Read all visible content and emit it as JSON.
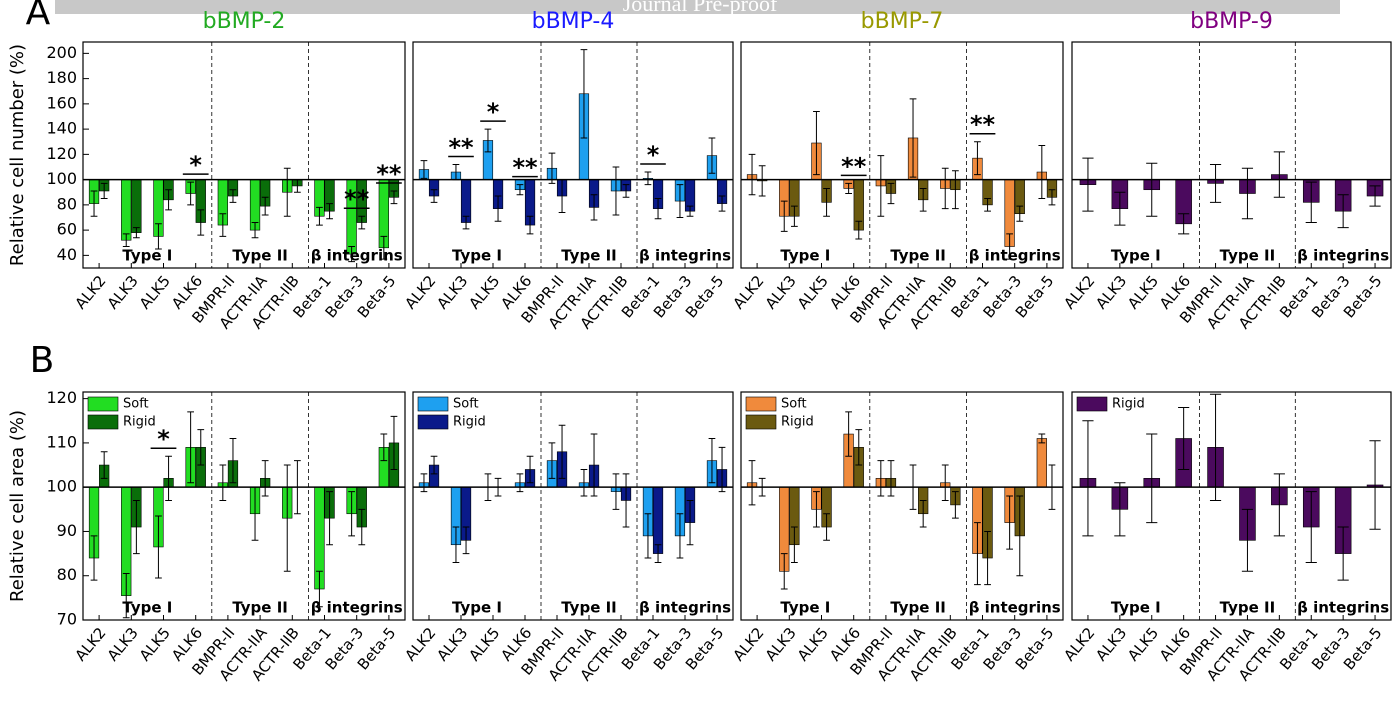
{
  "watermark": "Journal Pre-proof",
  "panel_labels": [
    "A",
    "B"
  ],
  "chart_data": [
    {
      "type": "bar",
      "title": "bBMP-2",
      "title_color": "#22aa22",
      "ylabel": "Relative cell number (%)",
      "categories": [
        "ALK2",
        "ALK3",
        "ALK5",
        "ALK6",
        "BMPR-II",
        "ACTR-IIA",
        "ACTR-IIB",
        "Beta-1",
        "Beta-3",
        "Beta-5"
      ],
      "ylim": [
        30,
        209
      ],
      "yticks": [
        40,
        60,
        80,
        100,
        120,
        140,
        160,
        180,
        200
      ],
      "baseline": 100,
      "series": [
        {
          "color": "#22dd22",
          "values": [
            81,
            52,
            55,
            89,
            64,
            60,
            90,
            71,
            41,
            46
          ],
          "errors": [
            10,
            5,
            10,
            9,
            9,
            6,
            19,
            7,
            6,
            9
          ]
        },
        {
          "color": "#0a6e0a",
          "values": [
            91,
            58,
            84,
            66,
            87,
            79,
            95,
            75,
            66,
            86
          ],
          "errors": [
            6,
            4,
            8,
            10,
            5,
            7,
            5,
            6,
            5,
            5
          ]
        }
      ],
      "groups": [
        {
          "label": "Type I",
          "from": "ALK2",
          "to": "ALK6"
        },
        {
          "label": "Type II",
          "from": "BMPR-II",
          "to": "ACTR-IIB"
        },
        {
          "label": "β integrins",
          "from": "Beta-1",
          "to": "Beta-5"
        }
      ],
      "annotations": [
        {
          "text": "*",
          "category": "ALK6"
        },
        {
          "text": "**",
          "category": "Beta-3"
        },
        {
          "text": "**",
          "category": "Beta-5"
        }
      ]
    },
    {
      "type": "bar",
      "title": "bBMP-4",
      "title_color": "#1a1aff",
      "categories": [
        "ALK2",
        "ALK3",
        "ALK5",
        "ALK6",
        "BMPR-II",
        "ACTR-IIA",
        "ACTR-IIB",
        "Beta-1",
        "Beta-3",
        "Beta-5"
      ],
      "ylim": [
        30,
        209
      ],
      "baseline": 100,
      "series": [
        {
          "color": "#1ea0f0",
          "values": [
            108,
            106,
            131,
            92,
            109,
            168,
            91,
            101,
            83,
            119
          ],
          "errors": [
            7,
            6,
            9,
            4,
            12,
            35,
            19,
            5,
            13,
            14
          ]
        },
        {
          "color": "#0a1a8a",
          "values": [
            87,
            66,
            77,
            64,
            87,
            78,
            91,
            77,
            75,
            81
          ],
          "errors": [
            5,
            5,
            10,
            7,
            13,
            10,
            5,
            8,
            4,
            6
          ]
        }
      ],
      "groups": [
        {
          "label": "Type I",
          "from": "ALK2",
          "to": "ALK6"
        },
        {
          "label": "Type II",
          "from": "BMPR-II",
          "to": "ACTR-IIB"
        },
        {
          "label": "β integrins",
          "from": "Beta-1",
          "to": "Beta-5"
        }
      ],
      "annotations": [
        {
          "text": "**",
          "category": "ALK3"
        },
        {
          "text": "*",
          "category": "ALK5"
        },
        {
          "text": "**",
          "category": "ALK6"
        },
        {
          "text": "*",
          "category": "Beta-1"
        }
      ]
    },
    {
      "type": "bar",
      "title": "bBMP-7",
      "title_color": "#999900",
      "categories": [
        "ALK2",
        "ALK3",
        "ALK5",
        "ALK6",
        "BMPR-II",
        "ACTR-IIA",
        "ACTR-IIB",
        "Beta-1",
        "Beta-3",
        "Beta-5"
      ],
      "ylim": [
        30,
        209
      ],
      "baseline": 100,
      "series": [
        {
          "color": "#f08a3c",
          "values": [
            104,
            71,
            129,
            93,
            95,
            133,
            93,
            117,
            47,
            106
          ],
          "errors": [
            16,
            12,
            25,
            4,
            24,
            31,
            16,
            13,
            10,
            21
          ]
        },
        {
          "color": "#6b5a10",
          "values": [
            99,
            71,
            82,
            60,
            89,
            84,
            92,
            80,
            73,
            86
          ],
          "errors": [
            12,
            8,
            11,
            7,
            8,
            9,
            15,
            5,
            6,
            6
          ]
        }
      ],
      "groups": [
        {
          "label": "Type I",
          "from": "ALK2",
          "to": "ALK6"
        },
        {
          "label": "Type II",
          "from": "BMPR-II",
          "to": "ACTR-IIB"
        },
        {
          "label": "β integrins",
          "from": "Beta-1",
          "to": "Beta-5"
        }
      ],
      "annotations": [
        {
          "text": "**",
          "category": "ALK6"
        },
        {
          "text": "**",
          "category": "Beta-1"
        }
      ]
    },
    {
      "type": "bar",
      "title": "bBMP-9",
      "title_color": "#800080",
      "categories": [
        "ALK2",
        "ALK3",
        "ALK5",
        "ALK6",
        "BMPR-II",
        "ACTR-IIA",
        "ACTR-IIB",
        "Beta-1",
        "Beta-3",
        "Beta-5"
      ],
      "ylim": [
        30,
        209
      ],
      "baseline": 100,
      "series": [
        {
          "color": "#4b0a5e",
          "values": [
            96,
            77,
            92,
            65,
            97,
            89,
            104,
            82,
            75,
            87
          ],
          "errors": [
            21,
            13,
            21,
            8,
            15,
            20,
            18,
            16,
            13,
            8
          ]
        }
      ],
      "groups": [
        {
          "label": "Type I",
          "from": "ALK2",
          "to": "ALK6"
        },
        {
          "label": "Type II",
          "from": "BMPR-II",
          "to": "ACTR-IIB"
        },
        {
          "label": "β integrins",
          "from": "Beta-1",
          "to": "Beta-5"
        }
      ]
    },
    {
      "type": "bar",
      "ylabel": "Relative cell area (%)",
      "categories": [
        "ALK2",
        "ALK3",
        "ALK5",
        "ALK6",
        "BMPR-II",
        "ACTR-IIA",
        "ACTR-IIB",
        "Beta-1",
        "Beta-3",
        "Beta-5"
      ],
      "ylim": [
        70,
        121.5
      ],
      "yticks": [
        70,
        80,
        90,
        100,
        110,
        120
      ],
      "baseline": 100,
      "legend": "upper left",
      "series": [
        {
          "name": "Soft",
          "color": "#22dd22",
          "values": [
            84,
            75.5,
            86.5,
            109,
            101,
            94,
            93,
            77,
            94,
            109
          ],
          "errors": [
            5,
            5,
            7,
            8,
            4,
            6,
            12,
            4,
            5,
            3
          ]
        },
        {
          "name": "Rigid",
          "color": "#0a6e0a",
          "values": [
            105,
            91,
            102,
            109,
            106,
            102,
            100,
            93,
            91,
            110
          ],
          "errors": [
            3,
            6,
            5,
            4,
            5,
            4,
            6,
            6,
            4,
            6
          ]
        }
      ],
      "groups": [
        {
          "label": "Type I",
          "from": "ALK2",
          "to": "ALK6"
        },
        {
          "label": "Type II",
          "from": "BMPR-II",
          "to": "ACTR-IIB"
        },
        {
          "label": "β integrins",
          "from": "Beta-1",
          "to": "Beta-5"
        }
      ],
      "annotations": [
        {
          "text": "*",
          "category": "ALK5"
        }
      ]
    },
    {
      "type": "bar",
      "categories": [
        "ALK2",
        "ALK3",
        "ALK5",
        "ALK6",
        "BMPR-II",
        "ACTR-IIA",
        "ACTR-IIB",
        "Beta-1",
        "Beta-3",
        "Beta-5"
      ],
      "ylim": [
        70,
        121.5
      ],
      "baseline": 100,
      "legend": "upper left",
      "series": [
        {
          "name": "Soft",
          "color": "#1ea0f0",
          "values": [
            101,
            87,
            100,
            101,
            106,
            101,
            99,
            89,
            89,
            106
          ],
          "errors": [
            2,
            4,
            3,
            2,
            4,
            3,
            4,
            5,
            5,
            5
          ]
        },
        {
          "name": "Rigid",
          "color": "#0a1a8a",
          "values": [
            105,
            88,
            100,
            104,
            108,
            105,
            97,
            85,
            92,
            104
          ],
          "errors": [
            2,
            3,
            2,
            3,
            6,
            7,
            6,
            2,
            5,
            5
          ]
        }
      ],
      "groups": [
        {
          "label": "Type I",
          "from": "ALK2",
          "to": "ALK6"
        },
        {
          "label": "Type II",
          "from": "BMPR-II",
          "to": "ACTR-IIB"
        },
        {
          "label": "β integrins",
          "from": "Beta-1",
          "to": "Beta-5"
        }
      ]
    },
    {
      "type": "bar",
      "categories": [
        "ALK2",
        "ALK3",
        "ALK5",
        "ALK6",
        "BMPR-II",
        "ACTR-IIA",
        "ACTR-IIB",
        "Beta-1",
        "Beta-3",
        "Beta-5"
      ],
      "ylim": [
        70,
        121.5
      ],
      "baseline": 100,
      "legend": "upper left",
      "series": [
        {
          "name": "Soft",
          "color": "#f08a3c",
          "values": [
            101,
            81,
            95,
            112,
            102,
            100,
            101,
            85,
            92,
            111
          ],
          "errors": [
            5,
            4,
            4,
            5,
            4,
            5,
            4,
            7,
            6,
            1
          ]
        },
        {
          "name": "Rigid",
          "color": "#6b5a10",
          "values": [
            100,
            87,
            91,
            109,
            102,
            94,
            96,
            84,
            89,
            100
          ],
          "errors": [
            2,
            4,
            3,
            4,
            4,
            3,
            3,
            6,
            9,
            5
          ]
        }
      ],
      "groups": [
        {
          "label": "Type I",
          "from": "ALK2",
          "to": "ALK6"
        },
        {
          "label": "Type II",
          "from": "BMPR-II",
          "to": "ACTR-IIB"
        },
        {
          "label": "β integrins",
          "from": "Beta-1",
          "to": "Beta-5"
        }
      ]
    },
    {
      "type": "bar",
      "categories": [
        "ALK2",
        "ALK3",
        "ALK5",
        "ALK6",
        "BMPR-II",
        "ACTR-IIA",
        "ACTR-IIB",
        "Beta-1",
        "Beta-3",
        "Beta-5"
      ],
      "ylim": [
        70,
        121.5
      ],
      "baseline": 100,
      "legend": "upper left",
      "series": [
        {
          "name": "Rigid",
          "color": "#4b0a5e",
          "values": [
            102,
            95,
            102,
            111,
            109,
            88,
            96,
            91,
            85,
            100.5
          ],
          "errors": [
            13,
            6,
            10,
            7,
            12,
            7,
            7,
            8,
            6,
            10
          ]
        }
      ],
      "groups": [
        {
          "label": "Type I",
          "from": "ALK2",
          "to": "ALK6"
        },
        {
          "label": "Type II",
          "from": "BMPR-II",
          "to": "ACTR-IIB"
        },
        {
          "label": "β integrins",
          "from": "Beta-1",
          "to": "Beta-5"
        }
      ]
    }
  ]
}
